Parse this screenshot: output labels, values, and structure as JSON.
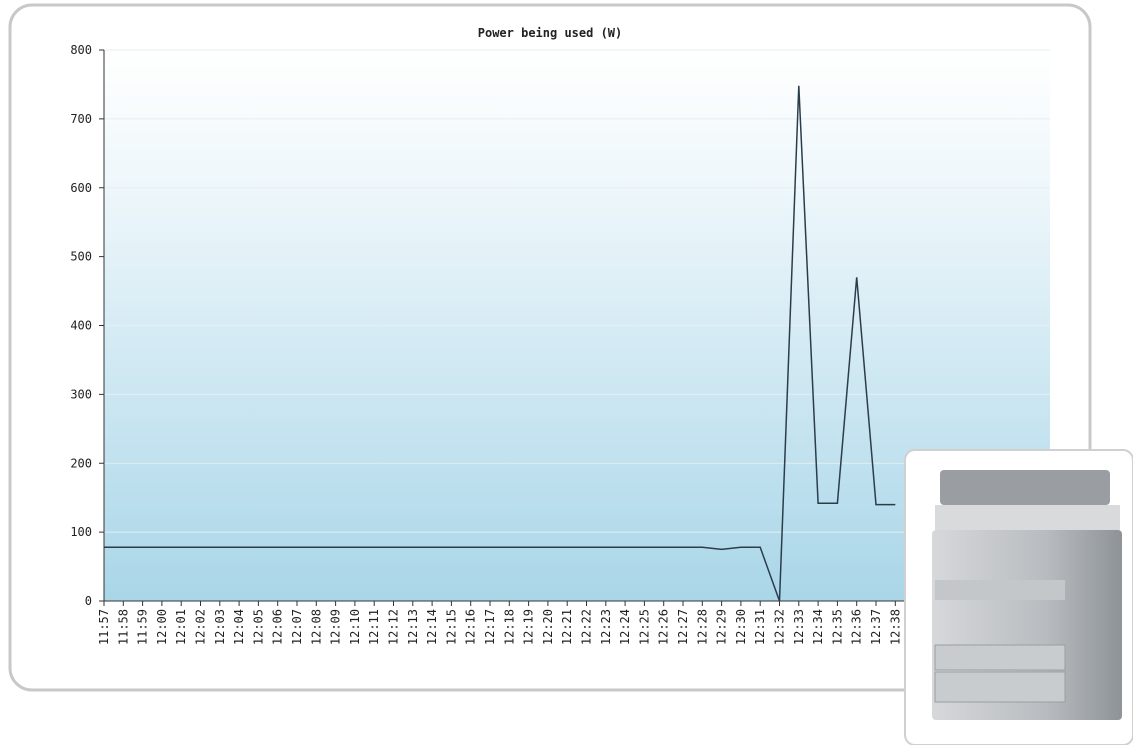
{
  "chart_data": {
    "type": "line",
    "title": "Power being used (W)",
    "categories": [
      "11:57",
      "11:58",
      "11:59",
      "12:00",
      "12:01",
      "12:02",
      "12:03",
      "12:04",
      "12:05",
      "12:06",
      "12:07",
      "12:08",
      "12:09",
      "12:10",
      "12:11",
      "12:12",
      "12:13",
      "12:14",
      "12:15",
      "12:16",
      "12:17",
      "12:18",
      "12:19",
      "12:20",
      "12:21",
      "12:22",
      "12:23",
      "12:24",
      "12:25",
      "12:26",
      "12:27",
      "12:28",
      "12:29",
      "12:30",
      "12:31",
      "12:32",
      "12:33",
      "12:34",
      "12:35",
      "12:36",
      "12:37",
      "12:38"
    ],
    "values": [
      78,
      78,
      78,
      78,
      78,
      78,
      78,
      78,
      78,
      78,
      78,
      78,
      78,
      78,
      78,
      78,
      78,
      78,
      78,
      78,
      78,
      78,
      78,
      78,
      78,
      78,
      78,
      78,
      78,
      78,
      78,
      78,
      75,
      78,
      78,
      0,
      748,
      142,
      142,
      470,
      140,
      140
    ],
    "color": "#2b3d4a",
    "ylim": [
      0,
      800
    ],
    "yticks": [
      0,
      100,
      200,
      300,
      400,
      500,
      600,
      700,
      800
    ],
    "grid": true
  }
}
